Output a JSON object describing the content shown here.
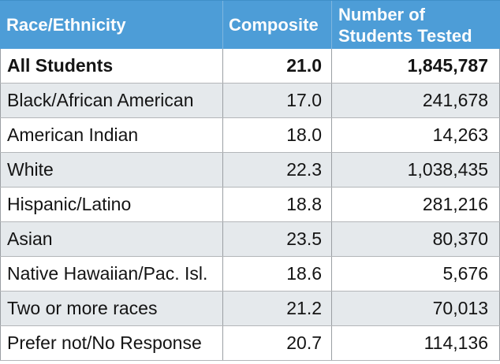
{
  "table": {
    "header": {
      "race_ethnicity": "Race/Ethnicity",
      "composite": "Composite",
      "students_tested": "Number of\nStudents Tested"
    },
    "rows": [
      {
        "race": "All Students",
        "composite": "21.0",
        "tested": "1,845,787",
        "bold": true
      },
      {
        "race": "Black/African American",
        "composite": "17.0",
        "tested": "241,678",
        "bold": false
      },
      {
        "race": "American Indian",
        "composite": "18.0",
        "tested": "14,263",
        "bold": false
      },
      {
        "race": "White",
        "composite": "22.3",
        "tested": "1,038,435",
        "bold": false
      },
      {
        "race": "Hispanic/Latino",
        "composite": "18.8",
        "tested": "281,216",
        "bold": false
      },
      {
        "race": "Asian",
        "composite": "23.5",
        "tested": "80,370",
        "bold": false
      },
      {
        "race": "Native Hawaiian/Pac. Isl.",
        "composite": "18.6",
        "tested": "5,676",
        "bold": false
      },
      {
        "race": "Two or more races",
        "composite": "21.2",
        "tested": "70,013",
        "bold": false
      },
      {
        "race": "Prefer not/No Response",
        "composite": "20.7",
        "tested": "114,136",
        "bold": false
      }
    ]
  },
  "colors": {
    "header_bg": "#4D9DD7",
    "header_text": "#FDFDFD",
    "header_divider": "#7FB6DF",
    "row_alt_bg": "#E5E9EC",
    "border_v": "#9B9FA3",
    "border_h": "#B3B6B9",
    "text": "#141414"
  },
  "chart_data": {
    "type": "table",
    "title": "Composite scores and number of students tested by race/ethnicity",
    "columns": [
      "Race/Ethnicity",
      "Composite",
      "Number of Students Tested"
    ],
    "rows": [
      [
        "All Students",
        21.0,
        1845787
      ],
      [
        "Black/African American",
        17.0,
        241678
      ],
      [
        "American Indian",
        18.0,
        14263
      ],
      [
        "White",
        22.3,
        1038435
      ],
      [
        "Hispanic/Latino",
        18.8,
        281216
      ],
      [
        "Asian",
        23.5,
        80370
      ],
      [
        "Native Hawaiian/Pac. Isl.",
        18.6,
        5676
      ],
      [
        "Two or more races",
        21.2,
        70013
      ],
      [
        "Prefer not/No Response",
        20.7,
        114136
      ]
    ],
    "layout_hints": {
      "header_style": "blue background, white bold text",
      "striping": "odd data rows shaded light blue-gray",
      "numeric_columns_alignment": "right",
      "first_row_emphasis": "bold"
    }
  }
}
